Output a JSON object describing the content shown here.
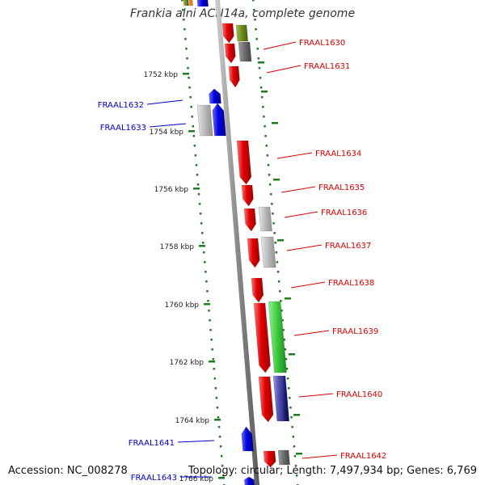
{
  "header": {
    "title": "Frankia alni ACN14a, complete genome"
  },
  "footer": {
    "accession": "Accession: NC_008278",
    "topology": "Topology: circular; Length: 7,497,934 bp; Genes: 6,769"
  },
  "colors": {
    "backbone": "#8a8a8a",
    "tick": "#1e7d1e",
    "forward_gene": "#e00000",
    "reverse_gene": "#0000e0",
    "grey_feature": "#b0b0b0",
    "green_feature": "#3cc83c",
    "olive_feature": "#6b8a1e",
    "darkgrey_feature": "#707070",
    "purple_feature": "#5050b0",
    "navy_feature": "#1a1a7a",
    "right_label": "#d80000",
    "left_label": "#0000c8"
  },
  "ruler": {
    "unit": "kbp",
    "ticks": [
      {
        "label": "1752 kbp"
      },
      {
        "label": "1754 kbp"
      },
      {
        "label": "1756 kbp"
      },
      {
        "label": "1758 kbp"
      },
      {
        "label": "1760 kbp"
      },
      {
        "label": "1762 kbp"
      },
      {
        "label": "1764 kbp"
      },
      {
        "label": "1766 kbp"
      }
    ]
  },
  "genes_right": [
    {
      "label": "FRAAL1630"
    },
    {
      "label": "FRAAL1631"
    },
    {
      "label": "FRAAL1634"
    },
    {
      "label": "FRAAL1635"
    },
    {
      "label": "FRAAL1636"
    },
    {
      "label": "FRAAL1637"
    },
    {
      "label": "FRAAL1638"
    },
    {
      "label": "FRAAL1639"
    },
    {
      "label": "FRAAL1640"
    },
    {
      "label": "FRAAL1642"
    }
  ],
  "genes_left": [
    {
      "label": "FRAAL1632"
    },
    {
      "label": "FRAAL1633"
    },
    {
      "label": "FRAAL1641"
    },
    {
      "label": "FRAAL1643"
    }
  ]
}
